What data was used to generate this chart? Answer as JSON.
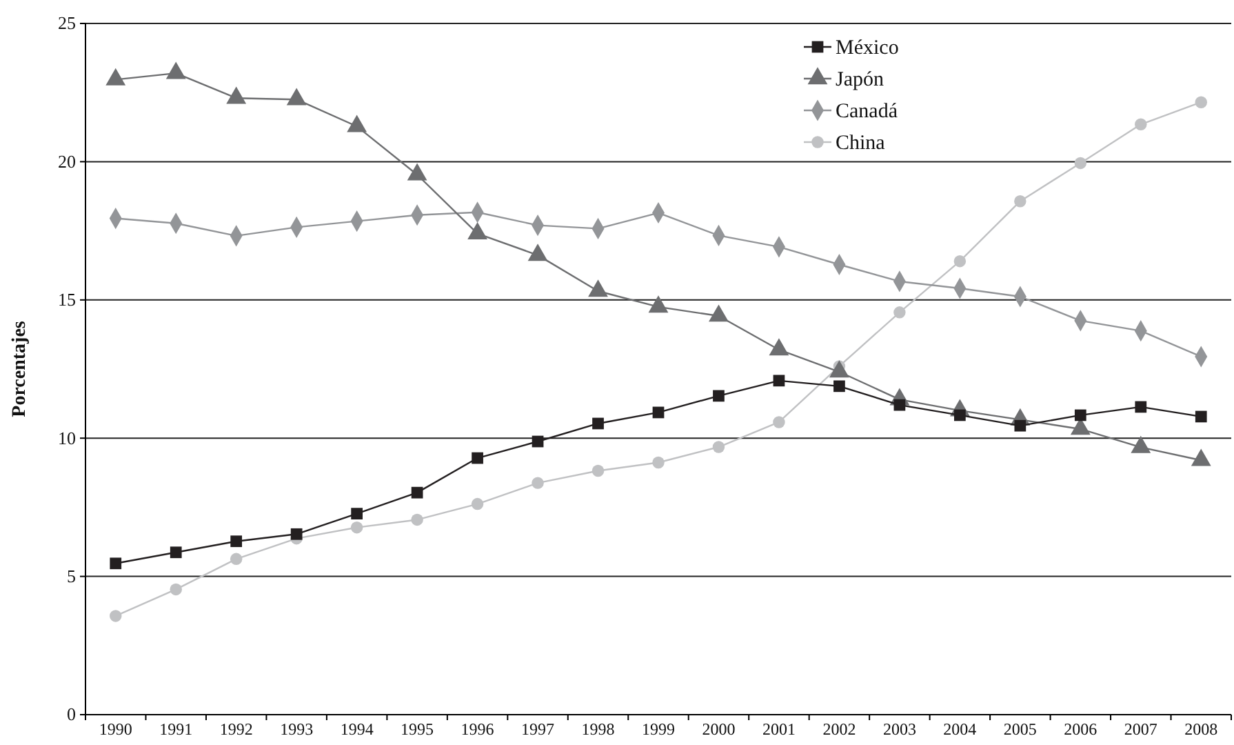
{
  "chart_data": {
    "type": "line",
    "ylabel": "Porcentajes",
    "categories": [
      "1990",
      "1991",
      "1992",
      "1993",
      "1994",
      "1995",
      "1996",
      "1997",
      "1998",
      "1999",
      "2000",
      "2001",
      "2002",
      "2003",
      "2004",
      "2005",
      "2006",
      "2007",
      "2008"
    ],
    "ylim": [
      0,
      25
    ],
    "yticks": [
      0,
      5,
      10,
      15,
      20,
      25
    ],
    "grid": "y",
    "legend": "top right",
    "line_style": "solid",
    "series": [
      {
        "name": "México",
        "color": "#231f20",
        "marker": "square",
        "values": [
          5.47,
          5.87,
          6.27,
          6.53,
          7.27,
          8.03,
          9.28,
          9.88,
          10.53,
          10.93,
          11.53,
          12.08,
          11.88,
          11.2,
          10.83,
          10.45,
          10.83,
          11.13,
          10.78
        ]
      },
      {
        "name": "Japón",
        "color": "#6d6e70",
        "marker": "triangle",
        "values": [
          22.97,
          23.2,
          22.3,
          22.25,
          21.28,
          19.53,
          17.4,
          16.62,
          15.32,
          14.75,
          14.42,
          13.2,
          12.4,
          11.4,
          11.0,
          10.67,
          10.33,
          9.67,
          9.2
        ]
      },
      {
        "name": "Canadá",
        "color": "#939598",
        "marker": "diamond",
        "values": [
          17.95,
          17.77,
          17.32,
          17.63,
          17.85,
          18.07,
          18.17,
          17.7,
          17.58,
          18.15,
          17.33,
          16.92,
          16.28,
          15.67,
          15.42,
          15.12,
          14.25,
          13.88,
          12.95
        ]
      },
      {
        "name": "China",
        "color": "#c0c1c3",
        "marker": "circle",
        "values": [
          3.57,
          4.53,
          5.63,
          6.37,
          6.77,
          7.05,
          7.62,
          8.38,
          8.82,
          9.12,
          9.68,
          10.58,
          12.6,
          14.55,
          16.4,
          18.57,
          19.95,
          21.35,
          22.15
        ]
      }
    ]
  }
}
